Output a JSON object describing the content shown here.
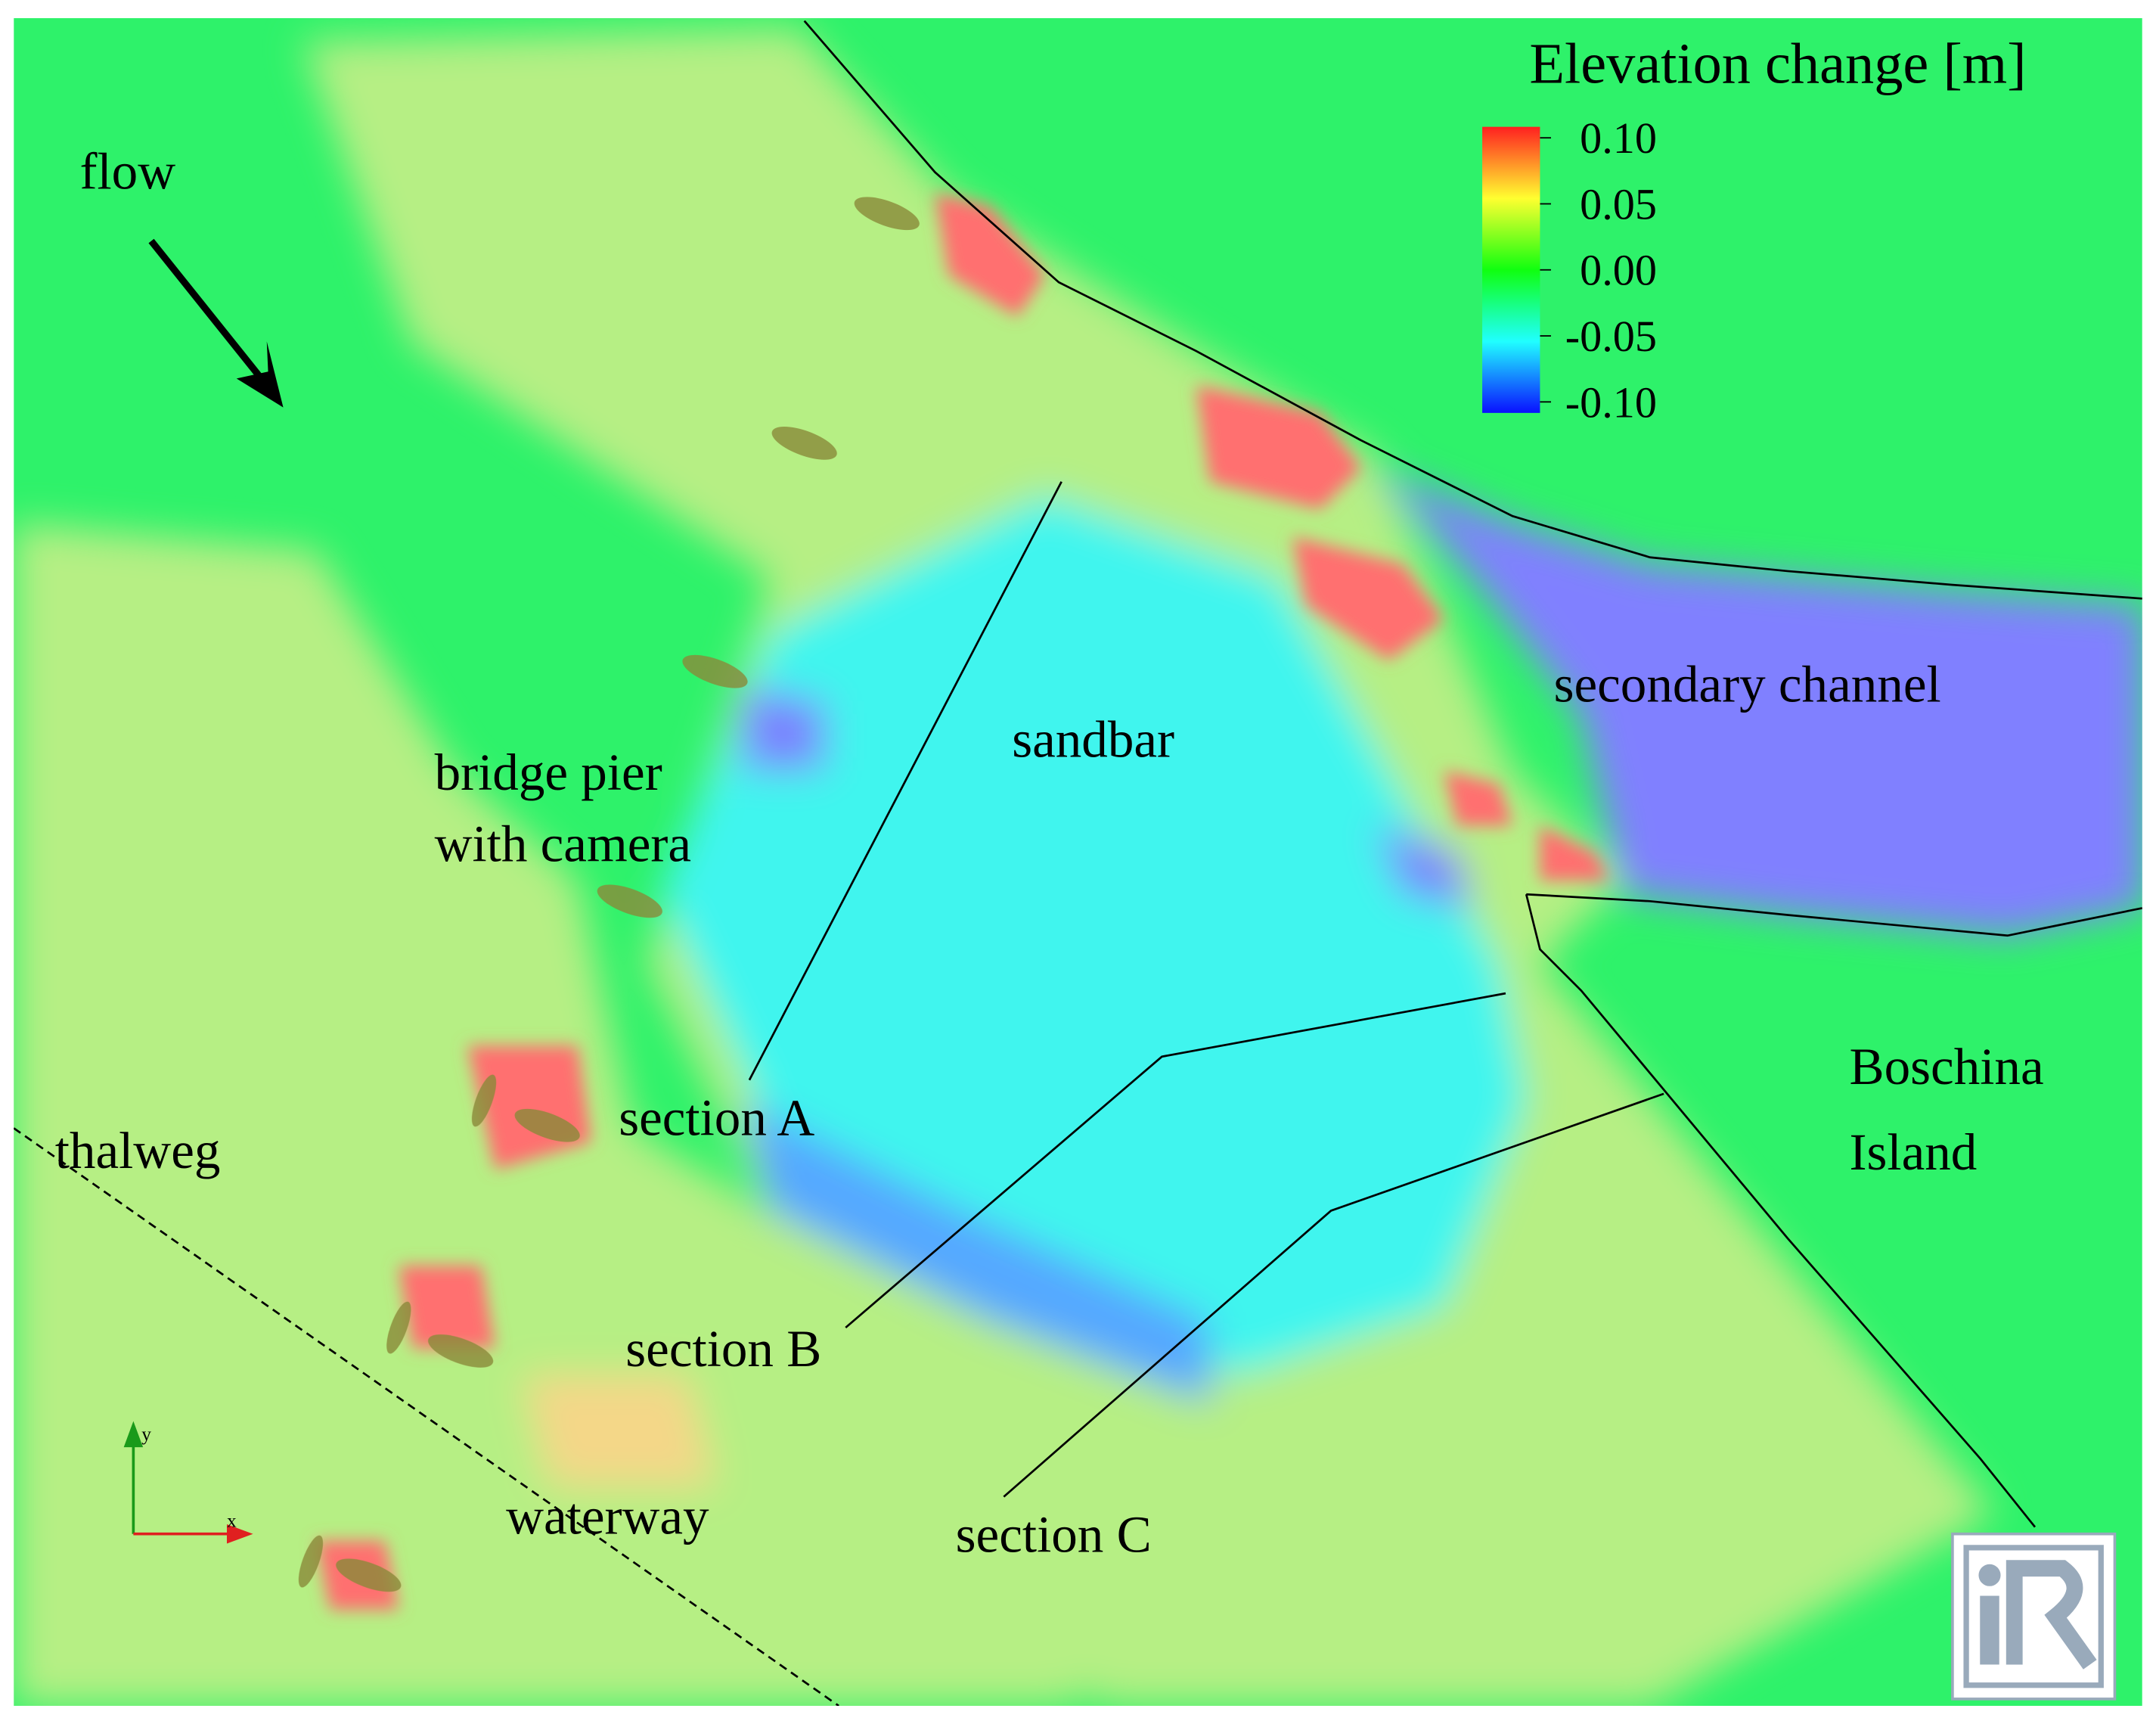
{
  "map": {
    "legend": {
      "title": "Elevation change [m]",
      "ticks": [
        {
          "value": 0.1,
          "label": "0.10"
        },
        {
          "value": 0.05,
          "label": "0.05"
        },
        {
          "value": 0,
          "label": "0.00"
        },
        {
          "value": -0.05,
          "label": "-0.05"
        },
        {
          "value": -0.1,
          "label": "-0.10"
        }
      ]
    },
    "labels": {
      "flow": "flow",
      "sandbar": "sandbar",
      "secondary_channel": "secondary channel",
      "bridge_pier": [
        "bridge pier",
        "with camera"
      ],
      "section_a": "section A",
      "section_b": "section B",
      "section_c": "section C",
      "thalweg": "thalweg",
      "waterway": "waterway",
      "island": [
        "Boschina",
        "Island"
      ]
    },
    "axes": {
      "x": "x",
      "y": "y"
    }
  }
}
